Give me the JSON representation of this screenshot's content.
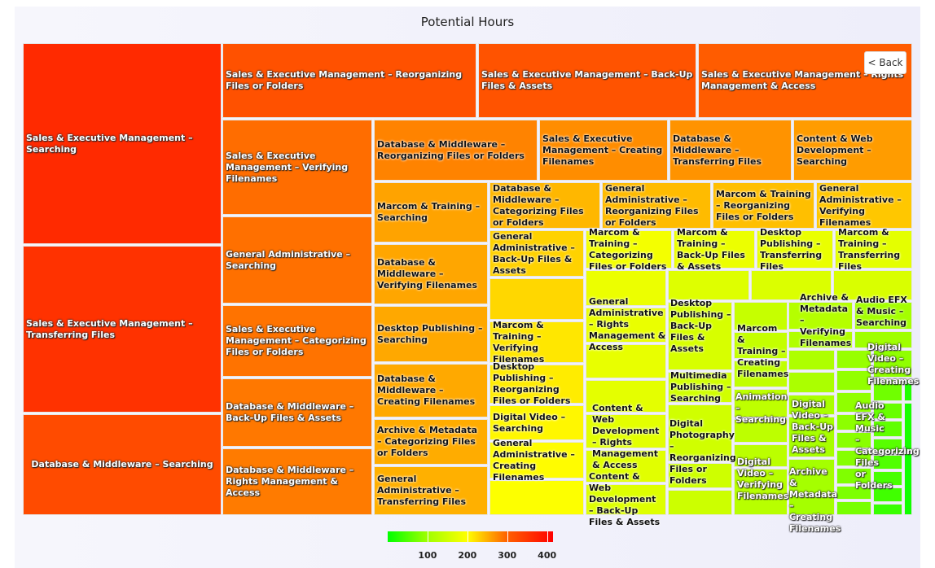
{
  "chart_data": {
    "type": "treemap",
    "title": "Potential Hours",
    "colorscale": {
      "min": 0,
      "max": 415,
      "ticks": [
        100,
        200,
        300,
        400
      ],
      "stops": [
        [
          0,
          "#00ff00"
        ],
        [
          100,
          "#a0ff00"
        ],
        [
          200,
          "#ffff00"
        ],
        [
          300,
          "#ff6000"
        ],
        [
          415,
          "#ff0000"
        ]
      ]
    },
    "cells": [
      {
        "label": "Sales & Executive Management – Searching",
        "value": 365
      },
      {
        "label": "Sales & Executive Management – Transferring Files",
        "value": 355
      },
      {
        "label": "Database & Middleware – Searching",
        "value": 325
      },
      {
        "label": "Sales & Executive Management – Reorganizing Files or Folders",
        "value": 318
      },
      {
        "label": "Sales & Executive Management – Back-Up Files & Assets",
        "value": 315
      },
      {
        "label": "Sales & Executive Management – Rights Management & Access",
        "value": 305
      },
      {
        "label": "Sales & Executive Management – Verifying Filenames",
        "value": 292
      },
      {
        "label": "General Administrative – Searching",
        "value": 290
      },
      {
        "label": "Sales & Executive Management – Categorizing Files or Folders",
        "value": 288
      },
      {
        "label": "Database & Middleware – Back-Up Files & Assets",
        "value": 285
      },
      {
        "label": "Database & Middleware – Rights Management & Access",
        "value": 283
      },
      {
        "label": "Database & Middleware – Reorganizing Files or Folders",
        "value": 278
      },
      {
        "label": "Sales & Executive Management – Creating Filenames",
        "value": 272
      },
      {
        "label": "Database & Middleware – Transferring Files",
        "value": 268
      },
      {
        "label": "Content & Web Development – Searching",
        "value": 262
      },
      {
        "label": "Marcom & Training – Searching",
        "value": 258
      },
      {
        "label": "Database & Middleware – Verifying Filenames",
        "value": 256
      },
      {
        "label": "Desktop Publishing – Searching",
        "value": 255
      },
      {
        "label": "Database & Middleware – Creating Filenames",
        "value": 254
      },
      {
        "label": "Archive & Metadata – Categorizing Files or Folders",
        "value": 252
      },
      {
        "label": "General Administrative – Transferring Files",
        "value": 250
      },
      {
        "label": "Database & Middleware – Categorizing Files or Folders",
        "value": 245
      },
      {
        "label": "General Administrative – Reorganizing Files or Folders",
        "value": 243
      },
      {
        "label": "Marcom & Training – Reorganizing Files or Folders",
        "value": 240
      },
      {
        "label": "General Administrative – Verifying Filenames",
        "value": 235
      },
      {
        "label": "General Administrative – Back-Up Files & Assets",
        "value": 228
      },
      {
        "label": "",
        "value": 225
      },
      {
        "label": "Marcom & Training – Verifying Filenames",
        "value": 215
      },
      {
        "label": "Desktop Publishing – Reorganizing Files or Folders",
        "value": 212
      },
      {
        "label": "Digital Video – Searching",
        "value": 205
      },
      {
        "label": "General Administrative – Creating Filenames",
        "value": 202
      },
      {
        "label": "",
        "value": 198
      },
      {
        "label": "Marcom & Training – Categorizing Files or Folders",
        "value": 188
      },
      {
        "label": "Marcom & Training – Back-Up Files & Assets",
        "value": 180
      },
      {
        "label": "Desktop Publishing – Transferring Files",
        "value": 178
      },
      {
        "label": "Marcom & Training – Transferring Files",
        "value": 172
      },
      {
        "label": "",
        "value": 180
      },
      {
        "label": "General Administrative – Rights Management & Access",
        "value": 178
      },
      {
        "label": "",
        "value": 176
      },
      {
        "label": "",
        "value": 172
      },
      {
        "label": "Content & Web Development – Rights Management & Access",
        "value": 170
      },
      {
        "label": "",
        "value": 168
      },
      {
        "label": "Content & Web Development – Back-Up Files & Assets",
        "value": 165
      },
      {
        "label": "",
        "value": 165
      },
      {
        "label": "",
        "value": 162
      },
      {
        "label": "",
        "value": 160
      },
      {
        "label": "Desktop Publishing – Back-Up Files & Assets",
        "value": 158
      },
      {
        "label": "Multimedia Publishing – Searching",
        "value": 152
      },
      {
        "label": "Digital Photography – Reorganizing Files or Folders",
        "value": 150
      },
      {
        "label": "",
        "value": 148
      },
      {
        "label": "",
        "value": 146
      },
      {
        "label": "",
        "value": 140
      },
      {
        "label": "Marcom & Training – Creating Filenames",
        "value": 138
      },
      {
        "label": "",
        "value": 135
      },
      {
        "label": "Animation – Searching",
        "value": 132
      },
      {
        "label": "",
        "value": 130
      },
      {
        "label": "",
        "value": 128
      },
      {
        "label": "Digital Video – Verifying Filenames",
        "value": 125
      },
      {
        "label": "Archive & Metadata – Verifying Filenames",
        "value": 122
      },
      {
        "label": "",
        "value": 118
      },
      {
        "label": "",
        "value": 115
      },
      {
        "label": "",
        "value": 112
      },
      {
        "label": "",
        "value": 110
      },
      {
        "label": "Digital Video – Back-Up Files & Assets",
        "value": 108
      },
      {
        "label": "Archive & Metadata – Creating Filenames",
        "value": 105
      },
      {
        "label": "Audio EFX & Music – Searching",
        "value": 104
      },
      {
        "label": "",
        "value": 100
      },
      {
        "label": "",
        "value": 95
      },
      {
        "label": "",
        "value": 92
      },
      {
        "label": "",
        "value": 90
      },
      {
        "label": "",
        "value": 88
      },
      {
        "label": "Audio EFX & Music – Categorizing Files or Folders",
        "value": 86
      },
      {
        "label": "",
        "value": 84
      },
      {
        "label": "",
        "value": 80
      },
      {
        "label": "",
        "value": 78
      },
      {
        "label": "",
        "value": 75
      },
      {
        "label": "Digital Video – Creating Filenames",
        "value": 90
      },
      {
        "label": "",
        "value": 70
      },
      {
        "label": "",
        "value": 20
      },
      {
        "label": "",
        "value": 65
      },
      {
        "label": "",
        "value": 15
      },
      {
        "label": "",
        "value": 60
      },
      {
        "label": "",
        "value": 55
      },
      {
        "label": "",
        "value": 50
      },
      {
        "label": "",
        "value": 45
      },
      {
        "label": "",
        "value": 40
      },
      {
        "label": "",
        "value": 35
      },
      {
        "label": "",
        "value": 10
      }
    ]
  },
  "controls": {
    "back_label": "< Back"
  }
}
